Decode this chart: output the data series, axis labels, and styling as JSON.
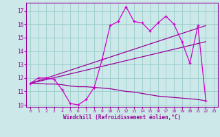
{
  "background_color": "#cce8e8",
  "grid_color": "#99cccc",
  "line_color": "#990099",
  "line_color2": "#cc00cc",
  "xlim": [
    -0.5,
    23.5
  ],
  "ylim": [
    9.85,
    17.6
  ],
  "yticks": [
    10,
    11,
    12,
    13,
    14,
    15,
    16,
    17
  ],
  "xticks": [
    0,
    1,
    2,
    3,
    4,
    5,
    6,
    7,
    8,
    9,
    10,
    11,
    12,
    13,
    14,
    15,
    16,
    17,
    18,
    19,
    20,
    21,
    22,
    23
  ],
  "xlabel": "Windchill (Refroidissement éolien,°C)",
  "series1_x": [
    0,
    1,
    2,
    3,
    4,
    5,
    6,
    7,
    8,
    9,
    10,
    11,
    12,
    13,
    14,
    15,
    16,
    17,
    18,
    19,
    20,
    21,
    22
  ],
  "series1_y": [
    11.6,
    12.0,
    12.0,
    11.9,
    11.1,
    10.1,
    10.0,
    10.4,
    11.3,
    13.4,
    15.9,
    16.2,
    17.3,
    16.2,
    16.1,
    15.5,
    16.1,
    16.6,
    16.0,
    14.7,
    13.1,
    15.9,
    10.3
  ],
  "series2_x": [
    0,
    22
  ],
  "series2_y": [
    11.6,
    15.9
  ],
  "series3_x": [
    0,
    22
  ],
  "series3_y": [
    11.6,
    14.7
  ],
  "series4_x": [
    0,
    1,
    2,
    3,
    4,
    5,
    6,
    7,
    8,
    9,
    10,
    11,
    12,
    13,
    14,
    15,
    16,
    17,
    18,
    19,
    20,
    21,
    22
  ],
  "series4_y": [
    11.6,
    11.6,
    11.55,
    11.55,
    11.5,
    11.4,
    11.35,
    11.35,
    11.3,
    11.25,
    11.2,
    11.1,
    11.0,
    10.95,
    10.85,
    10.75,
    10.65,
    10.6,
    10.55,
    10.5,
    10.45,
    10.4,
    10.3
  ]
}
